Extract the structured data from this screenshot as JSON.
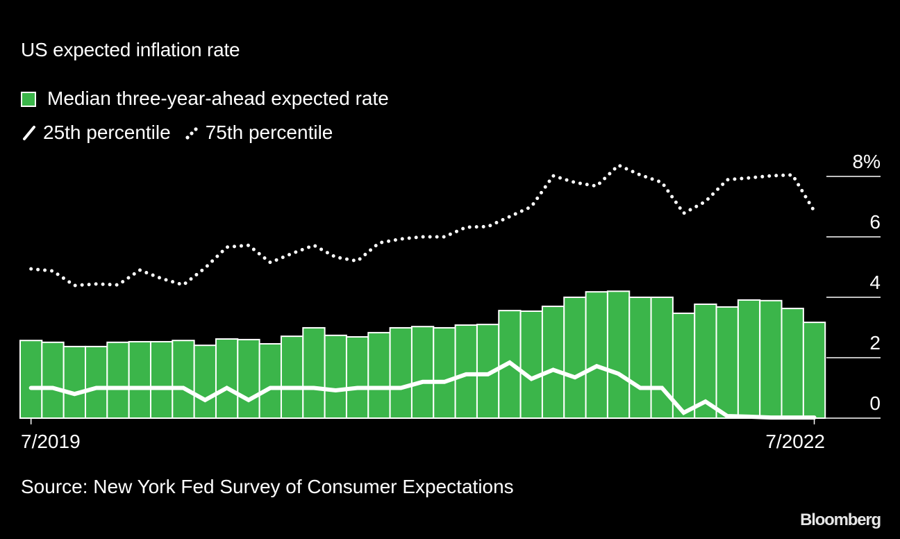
{
  "chart_data": {
    "type": "bar",
    "title": "US expected inflation rate",
    "xlabel": "",
    "ylabel": "",
    "ylim": [
      0,
      8
    ],
    "yticks": [
      0,
      2,
      4,
      6,
      8
    ],
    "ytick_labels": [
      "0",
      "2",
      "4",
      "6",
      "8%"
    ],
    "x_tick_labels": [
      {
        "index": 0,
        "label": "7/2019"
      },
      {
        "index": 36,
        "label": "7/2022"
      }
    ],
    "grid": true,
    "legend_position": "top-left",
    "legend": [
      {
        "label": "Median three-year-ahead expected rate",
        "kind": "bar"
      },
      {
        "label": "25th percentile",
        "kind": "solid-line"
      },
      {
        "label": "75th percentile",
        "kind": "dotted-line"
      }
    ],
    "categories": [
      "7/2019",
      "8/2019",
      "9/2019",
      "10/2019",
      "11/2019",
      "12/2019",
      "1/2020",
      "2/2020",
      "3/2020",
      "4/2020",
      "5/2020",
      "6/2020",
      "7/2020",
      "8/2020",
      "9/2020",
      "10/2020",
      "11/2020",
      "12/2020",
      "1/2021",
      "2/2021",
      "3/2021",
      "4/2021",
      "5/2021",
      "6/2021",
      "7/2021",
      "8/2021",
      "9/2021",
      "10/2021",
      "11/2021",
      "12/2021",
      "1/2022",
      "2/2022",
      "3/2022",
      "4/2022",
      "5/2022",
      "6/2022",
      "7/2022"
    ],
    "series": [
      {
        "name": "Median three-year-ahead expected rate",
        "type": "bar",
        "color": "#3bb54a",
        "values": [
          2.57,
          2.51,
          2.37,
          2.37,
          2.51,
          2.53,
          2.53,
          2.57,
          2.41,
          2.62,
          2.6,
          2.46,
          2.71,
          2.99,
          2.74,
          2.69,
          2.83,
          2.99,
          3.03,
          2.99,
          3.08,
          3.1,
          3.56,
          3.54,
          3.7,
          4.0,
          4.18,
          4.2,
          4.0,
          4.0,
          3.47,
          3.77,
          3.68,
          3.91,
          3.89,
          3.63,
          3.17
        ]
      },
      {
        "name": "25th percentile",
        "type": "line",
        "style": "solid",
        "color": "#ffffff",
        "values": [
          1.0,
          1.0,
          0.8,
          1.0,
          1.0,
          1.0,
          1.0,
          1.0,
          0.6,
          1.0,
          0.6,
          1.0,
          1.0,
          1.0,
          0.92,
          1.0,
          1.0,
          1.0,
          1.2,
          1.2,
          1.45,
          1.45,
          1.84,
          1.3,
          1.6,
          1.35,
          1.72,
          1.47,
          1.0,
          1.0,
          0.18,
          0.55,
          0.07,
          0.05,
          0.02,
          0.02,
          0.02
        ]
      },
      {
        "name": "75th percentile",
        "type": "line",
        "style": "dotted",
        "color": "#ffffff",
        "values": [
          4.94,
          4.87,
          4.39,
          4.44,
          4.41,
          4.9,
          4.62,
          4.41,
          4.97,
          5.66,
          5.72,
          5.15,
          5.45,
          5.72,
          5.33,
          5.2,
          5.8,
          5.93,
          6.0,
          6.0,
          6.32,
          6.34,
          6.67,
          7.0,
          8.02,
          7.8,
          7.68,
          8.37,
          8.05,
          7.8,
          6.78,
          7.17,
          7.89,
          7.95,
          8.02,
          8.05,
          6.85
        ]
      }
    ]
  },
  "footer": {
    "source": "Source: New York Fed Survey of Consumer Expectations",
    "logo": "Bloomberg"
  }
}
